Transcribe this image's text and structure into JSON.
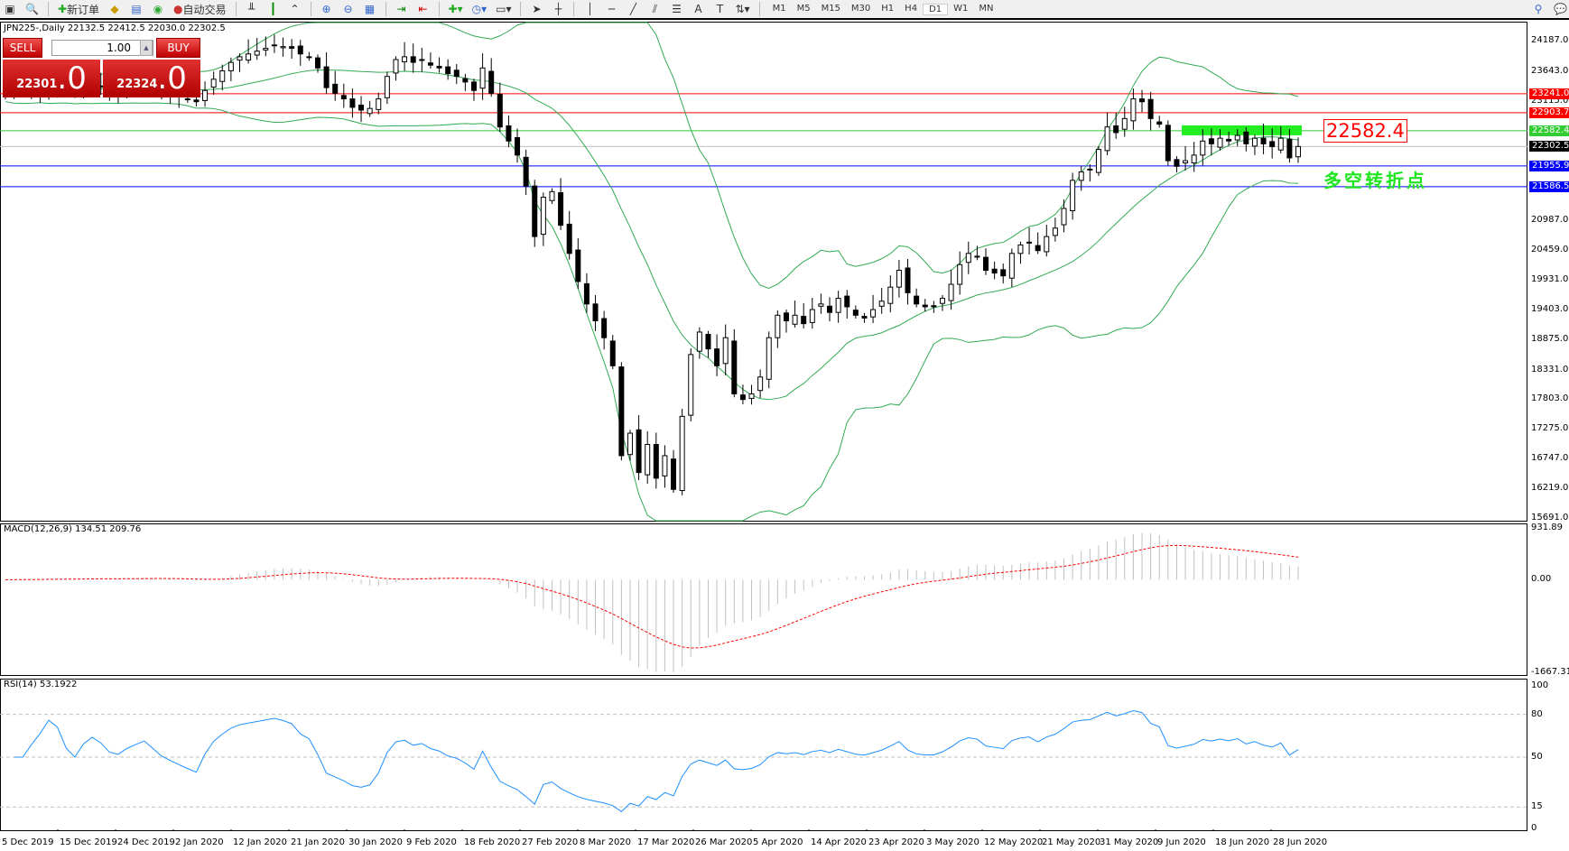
{
  "toolbar": {
    "new_order": "新订单",
    "auto_trading": "自动交易",
    "timeframes": [
      "M1",
      "M5",
      "M15",
      "M30",
      "H1",
      "H4",
      "D1",
      "W1",
      "MN"
    ],
    "active_timeframe": "D1"
  },
  "chart": {
    "title": "JPN225-,Daily  22132.5 22412.5 22030.0 22302.5",
    "trade_panel": {
      "sell": "SELL",
      "buy": "BUY",
      "lot": "1.00",
      "sell_main": "22301",
      "sell_big": ".0",
      "buy_main": "22324",
      "buy_big": ".0"
    },
    "price_axis": [
      "24187.0",
      "23643.0",
      "23115.0",
      "20987.0",
      "20459.0",
      "19931.0",
      "19403.0",
      "18875.0",
      "18331.0",
      "17803.0",
      "17275.0",
      "16747.0",
      "16219.0",
      "15691.0"
    ],
    "price_range": [
      15691,
      24187
    ],
    "levels": [
      {
        "value": "23241.0",
        "color": "#ff0000"
      },
      {
        "value": "22903.7",
        "color": "#ff0000"
      },
      {
        "value": "22582.4",
        "color": "#33cc33"
      },
      {
        "value": "22302.5",
        "color": "#000000",
        "line": "#c0c0c0"
      },
      {
        "value": "21955.9",
        "color": "#0000ff"
      },
      {
        "value": "21586.5",
        "color": "#0000ff"
      }
    ],
    "annotation_price": "22582.4",
    "annotation_text": "多空转折点",
    "closes": [
      23250,
      23300,
      23350,
      23280,
      23320,
      23400,
      23380,
      23300,
      23250,
      23350,
      23420,
      23380,
      23300,
      23280,
      23350,
      23400,
      23450,
      23380,
      23300,
      23250,
      23200,
      23150,
      23100,
      23300,
      23500,
      23650,
      23800,
      23900,
      23950,
      24000,
      24050,
      24100,
      24080,
      24050,
      23950,
      23900,
      23700,
      23350,
      23250,
      23150,
      23000,
      22950,
      22980,
      23150,
      23550,
      23850,
      23900,
      23800,
      23850,
      23750,
      23700,
      23600,
      23550,
      23450,
      23300,
      23700,
      23250,
      22650,
      22400,
      22150,
      21600,
      20700,
      21400,
      21500,
      20900,
      20400,
      19900,
      19500,
      19200,
      18900,
      18400,
      16800,
      17200,
      16500,
      17000,
      16400,
      16800,
      16200,
      17500,
      18600,
      19000,
      18700,
      18400,
      18900,
      17900,
      17800,
      17900,
      18200,
      18900,
      19300,
      19200,
      19300,
      19150,
      19400,
      19500,
      19350,
      19600,
      19450,
      19300,
      19250,
      19400,
      19550,
      19800,
      20100,
      19700,
      19500,
      19450,
      19450,
      19600,
      19850,
      20200,
      20400,
      20350,
      20100,
      20050,
      20000,
      20400,
      20550,
      20600,
      20450,
      20700,
      20850,
      21200,
      21700,
      21850,
      21900,
      22250,
      22650,
      22550,
      22800,
      23150,
      23100,
      22800,
      22700,
      22050,
      21950,
      22050,
      22150,
      22400,
      22350,
      22450,
      22400,
      22500,
      22350,
      22450,
      22350,
      22300,
      22450,
      22100,
      22302.5
    ],
    "bollinger_color": "#33aa55"
  },
  "macd": {
    "label": "MACD(12,26,9) 134.51 209.76",
    "axis": [
      "931.89",
      "0.00",
      "-1667.31"
    ],
    "range": [
      -1667.31,
      931.89
    ],
    "signal_color": "#ff0000",
    "hist_color": "#c0c0c0"
  },
  "rsi": {
    "label": "RSI(14) 53.1922",
    "axis": [
      "100",
      "80",
      "50",
      "15",
      "0"
    ],
    "levels": [
      80,
      50,
      15
    ],
    "line_color": "#1e90ff"
  },
  "dates": [
    "5 Dec 2019",
    "15 Dec 2019",
    "24 Dec 2019",
    "2 Jan 2020",
    "12 Jan 2020",
    "21 Jan 2020",
    "30 Jan 2020",
    "9 Feb 2020",
    "18 Feb 2020",
    "27 Feb 2020",
    "8 Mar 2020",
    "17 Mar 2020",
    "26 Mar 2020",
    "5 Apr 2020",
    "14 Apr 2020",
    "23 Apr 2020",
    "3 May 2020",
    "12 May 2020",
    "21 May 2020",
    "31 May 2020",
    "9 Jun 2020",
    "18 Jun 2020",
    "28 Jun 2020"
  ]
}
